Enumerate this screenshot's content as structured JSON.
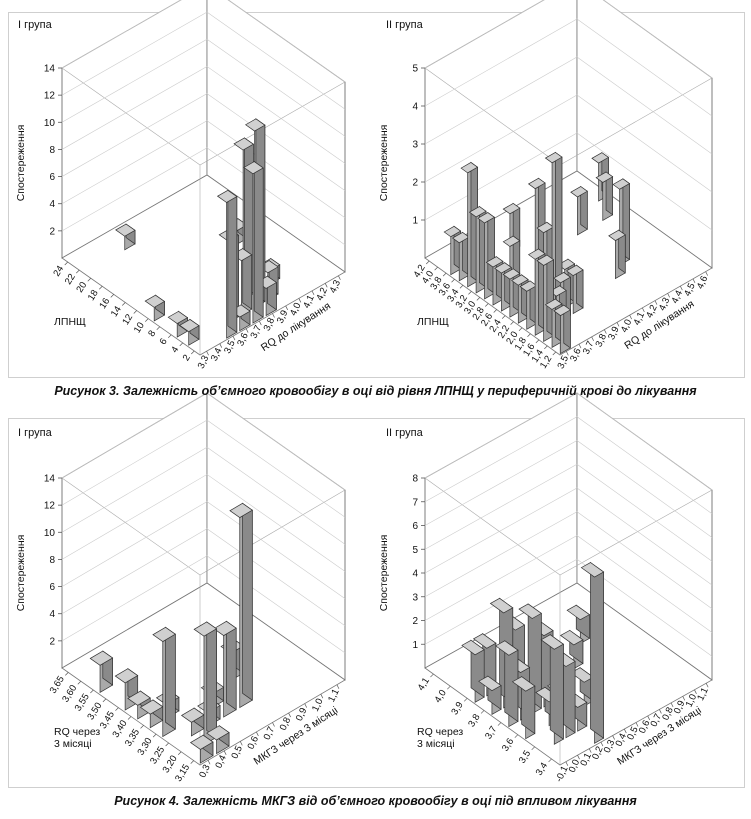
{
  "figure3": {
    "caption": "Рисунок 3.  Залежність об’ємного кровообігу в оці від рівня ЛПНЩ у периферичній крові до лікування",
    "panels": [
      {
        "group_label": "І група",
        "z_label": "Спостереження",
        "z_ticks": [
          "2",
          "4",
          "6",
          "8",
          "10",
          "12",
          "14"
        ],
        "z_max": 14,
        "left_axis_label": "ЛПНЩ",
        "left_ticks": [
          "24",
          "22",
          "20",
          "18",
          "16",
          "14",
          "12",
          "10",
          "8",
          "6",
          "4",
          "2"
        ],
        "right_axis_label": "RQ до лікування",
        "right_ticks": [
          "3,3",
          "3,4",
          "3,5",
          "3,6",
          "3,7",
          "3,8",
          "3,9",
          "4,0",
          "4,1",
          "4,2",
          "4,3"
        ],
        "bars": [
          {
            "li": 7,
            "ri": 0,
            "v": 1
          },
          {
            "li": 9,
            "ri": 0,
            "v": 1
          },
          {
            "li": 10,
            "ri": 0,
            "v": 1
          },
          {
            "li": 11,
            "ri": 2,
            "v": 10
          },
          {
            "li": 10,
            "ri": 3,
            "v": 6
          },
          {
            "li": 11,
            "ri": 3,
            "v": 1
          },
          {
            "li": 10,
            "ri": 4,
            "v": 4
          },
          {
            "li": 11,
            "ri": 4,
            "v": 11
          },
          {
            "li": 10,
            "ri": 5,
            "v": 13
          },
          {
            "li": 9,
            "ri": 5,
            "v": 11
          },
          {
            "li": 11,
            "ri": 5,
            "v": 2
          },
          {
            "li": 10,
            "ri": 6,
            "v": 2
          },
          {
            "li": 9,
            "ri": 7,
            "v": 1
          },
          {
            "li": 5,
            "ri": 8,
            "v": 1
          },
          {
            "li": 1,
            "ri": 3,
            "v": 1
          }
        ]
      },
      {
        "group_label": "ІІ група",
        "z_label": "Спостереження",
        "z_ticks": [
          "1",
          "2",
          "3",
          "4",
          "5"
        ],
        "z_max": 5,
        "left_axis_label": "ЛПНЩ",
        "left_ticks": [
          "4,2",
          "4,0",
          "3,8",
          "3,6",
          "3,4",
          "3,2",
          "3,0",
          "2,8",
          "2,6",
          "2,4",
          "2,2",
          "2,0",
          "1,8",
          "1,6",
          "1,4",
          "1,2"
        ],
        "right_axis_label": "RQ до лікування",
        "right_ticks": [
          "3,5",
          "3,6",
          "3,7",
          "3,8",
          "3,9",
          "4,0",
          "4,1",
          "4,2",
          "4,3",
          "4,4",
          "4,5",
          "4,6"
        ],
        "bars": [
          {
            "li": 2,
            "ri": 0,
            "v": 1
          },
          {
            "li": 3,
            "ri": 0,
            "v": 1
          },
          {
            "li": 4,
            "ri": 0,
            "v": 3
          },
          {
            "li": 5,
            "ri": 0,
            "v": 2
          },
          {
            "li": 6,
            "ri": 0,
            "v": 2
          },
          {
            "li": 7,
            "ri": 0,
            "v": 1
          },
          {
            "li": 8,
            "ri": 0,
            "v": 1
          },
          {
            "li": 9,
            "ri": 0,
            "v": 1
          },
          {
            "li": 10,
            "ri": 0,
            "v": 1
          },
          {
            "li": 11,
            "ri": 0,
            "v": 1
          },
          {
            "li": 12,
            "ri": 0,
            "v": 2
          },
          {
            "li": 13,
            "ri": 0,
            "v": 2
          },
          {
            "li": 14,
            "ri": 0,
            "v": 1
          },
          {
            "li": 15,
            "ri": 0,
            "v": 1
          },
          {
            "li": 13,
            "ri": 1,
            "v": 1
          },
          {
            "li": 12,
            "ri": 2,
            "v": 1
          },
          {
            "li": 9,
            "ri": 2,
            "v": 3
          },
          {
            "li": 10,
            "ri": 2,
            "v": 2
          },
          {
            "li": 11,
            "ri": 2,
            "v": 4
          },
          {
            "li": 12,
            "ri": 3,
            "v": 1
          },
          {
            "li": 11,
            "ri": 3,
            "v": 1
          },
          {
            "li": 6,
            "ri": 2,
            "v": 1
          },
          {
            "li": 7,
            "ri": 4,
            "v": 1
          },
          {
            "li": 3,
            "ri": 4,
            "v": 1
          },
          {
            "li": 11,
            "ri": 7,
            "v": 1
          },
          {
            "li": 10,
            "ri": 8,
            "v": 2
          },
          {
            "li": 5,
            "ri": 8,
            "v": 1
          },
          {
            "li": 5,
            "ri": 10,
            "v": 1
          },
          {
            "li": 3,
            "ri": 11,
            "v": 1
          }
        ]
      }
    ]
  },
  "figure4": {
    "caption": "Рисунок 4.  Залежність МКГЗ від об’ємного кровообігу в оці під впливом лікування",
    "panels": [
      {
        "group_label": "І група",
        "z_label": "Спостереження",
        "z_ticks": [
          "2",
          "4",
          "6",
          "8",
          "10",
          "12",
          "14"
        ],
        "z_max": 14,
        "left_axis_label": "RQ через 3 місяці",
        "left_ticks": [
          "3,65",
          "3,60",
          "3,55",
          "3,50",
          "3,45",
          "3,40",
          "3,35",
          "3,30",
          "3,25",
          "3,20",
          "3,15"
        ],
        "right_axis_label": "МКГЗ через 3 місяці",
        "right_ticks": [
          "0,3",
          "0,4",
          "0,5",
          "0,6",
          "0,7",
          "0,8",
          "0,9",
          "1,0",
          "1,1"
        ],
        "bars": [
          {
            "li": 2,
            "ri": 0,
            "v": 2
          },
          {
            "li": 4,
            "ri": 0,
            "v": 2
          },
          {
            "li": 5,
            "ri": 0,
            "v": 1
          },
          {
            "li": 6,
            "ri": 0,
            "v": 1
          },
          {
            "li": 6,
            "ri": 1,
            "v": 1
          },
          {
            "li": 7,
            "ri": 0,
            "v": 7
          },
          {
            "li": 8,
            "ri": 1,
            "v": 1
          },
          {
            "li": 10,
            "ri": 0,
            "v": 1
          },
          {
            "li": 9,
            "ri": 1,
            "v": 8
          },
          {
            "li": 8,
            "ri": 2,
            "v": 1
          },
          {
            "li": 7,
            "ri": 3,
            "v": 1
          },
          {
            "li": 10,
            "ri": 1,
            "v": 1
          },
          {
            "li": 8,
            "ri": 3,
            "v": 6
          },
          {
            "li": 8,
            "ri": 4,
            "v": 14
          },
          {
            "li": 6,
            "ri": 5,
            "v": 2
          }
        ]
      },
      {
        "group_label": "ІІ група",
        "z_label": "Спостереження",
        "z_ticks": [
          "1",
          "2",
          "3",
          "4",
          "5",
          "6",
          "7",
          "8"
        ],
        "z_max": 8,
        "left_axis_label": "RQ через 3 місяці",
        "left_ticks": [
          "4,1",
          "4,0",
          "3,9",
          "3,8",
          "3,7",
          "3,6",
          "3,5",
          "3,4"
        ],
        "right_axis_label": "МКГЗ через 3 місяці",
        "right_ticks": [
          "-0,1",
          "0,0",
          "0,1",
          "0,2",
          "0,3",
          "0,4",
          "0,5",
          "0,6",
          "0,7",
          "0,8",
          "0,9",
          "1,0",
          "1,1"
        ],
        "bars": [
          {
            "li": 2,
            "ri": 0,
            "v": 2
          },
          {
            "li": 3,
            "ri": 0,
            "v": 1
          },
          {
            "li": 4,
            "ri": 0,
            "v": 3
          },
          {
            "li": 5,
            "ri": 0,
            "v": 2
          },
          {
            "li": 2,
            "ri": 1,
            "v": 2
          },
          {
            "li": 3,
            "ri": 1,
            "v": 4
          },
          {
            "li": 4,
            "ri": 1,
            "v": 2
          },
          {
            "li": 6,
            "ri": 1,
            "v": 4
          },
          {
            "li": 5,
            "ri": 2,
            "v": 1
          },
          {
            "li": 3,
            "ri": 2,
            "v": 3
          },
          {
            "li": 4,
            "ri": 2,
            "v": 4
          },
          {
            "li": 5,
            "ri": 3,
            "v": 1
          },
          {
            "li": 4,
            "ri": 3,
            "v": 3
          },
          {
            "li": 6,
            "ri": 2,
            "v": 3
          },
          {
            "li": 6,
            "ri": 3,
            "v": 1
          },
          {
            "li": 7,
            "ri": 3,
            "v": 7
          },
          {
            "li": 5,
            "ri": 5,
            "v": 1
          },
          {
            "li": 3,
            "ri": 7,
            "v": 1
          },
          {
            "li": 2,
            "ri": 9,
            "v": 1
          }
        ]
      }
    ]
  }
}
